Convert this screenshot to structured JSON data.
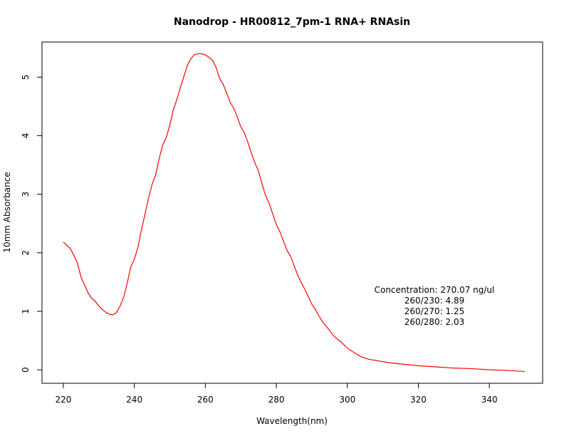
{
  "chart_data": {
    "type": "line",
    "title": "Nanodrop - HR00812_7pm-1 RNA+ RNAsin",
    "xlabel": "Wavelength(nm)",
    "ylabel": "10mm Absorbance",
    "xlim": [
      214,
      355
    ],
    "ylim": [
      -0.23,
      5.6
    ],
    "xticks": [
      220,
      240,
      260,
      280,
      300,
      320,
      340
    ],
    "yticks": [
      0,
      1,
      2,
      3,
      4,
      5
    ],
    "grid": false,
    "legend": "none",
    "series": [
      {
        "color": "#ff0000",
        "x": [
          220,
          222,
          223,
          224,
          225,
          226,
          227,
          228,
          229,
          230,
          231,
          232,
          233,
          234,
          235,
          236,
          237,
          238,
          239,
          240,
          241,
          242,
          243,
          244,
          245,
          246,
          247,
          248,
          249,
          250,
          251,
          252,
          253,
          254,
          255,
          256,
          257,
          258,
          259,
          260,
          261,
          262,
          263,
          264,
          265,
          266,
          267,
          268,
          269,
          270,
          271,
          272,
          273,
          274,
          275,
          276,
          277,
          278,
          279,
          280,
          281,
          282,
          283,
          284,
          285,
          286,
          287,
          288,
          289,
          290,
          291,
          292,
          293,
          294,
          295,
          296,
          297,
          298,
          299,
          300,
          302,
          304,
          306,
          308,
          310,
          312,
          315,
          320,
          325,
          330,
          335,
          340,
          345,
          350
        ],
        "y": [
          2.18,
          2.07,
          1.95,
          1.82,
          1.58,
          1.45,
          1.31,
          1.22,
          1.17,
          1.09,
          1.03,
          0.98,
          0.95,
          0.94,
          0.98,
          1.09,
          1.24,
          1.48,
          1.76,
          1.89,
          2.09,
          2.39,
          2.66,
          2.93,
          3.17,
          3.33,
          3.61,
          3.84,
          3.97,
          4.18,
          4.45,
          4.62,
          4.83,
          5.02,
          5.21,
          5.32,
          5.39,
          5.4,
          5.4,
          5.38,
          5.34,
          5.29,
          5.17,
          4.98,
          4.88,
          4.73,
          4.57,
          4.47,
          4.32,
          4.15,
          4.05,
          3.88,
          3.7,
          3.53,
          3.39,
          3.17,
          2.97,
          2.84,
          2.66,
          2.48,
          2.36,
          2.2,
          2.04,
          1.94,
          1.78,
          1.62,
          1.49,
          1.38,
          1.25,
          1.12,
          1.03,
          0.92,
          0.82,
          0.75,
          0.67,
          0.59,
          0.53,
          0.49,
          0.43,
          0.37,
          0.29,
          0.22,
          0.18,
          0.16,
          0.14,
          0.12,
          0.1,
          0.07,
          0.05,
          0.03,
          0.02,
          0.0,
          -0.01,
          -0.03
        ]
      }
    ],
    "annotation": {
      "lines": [
        "Concentration: 270.07 ng/ul",
        "260/230: 4.89",
        "260/270: 1.25",
        "260/280: 2.03"
      ]
    }
  }
}
